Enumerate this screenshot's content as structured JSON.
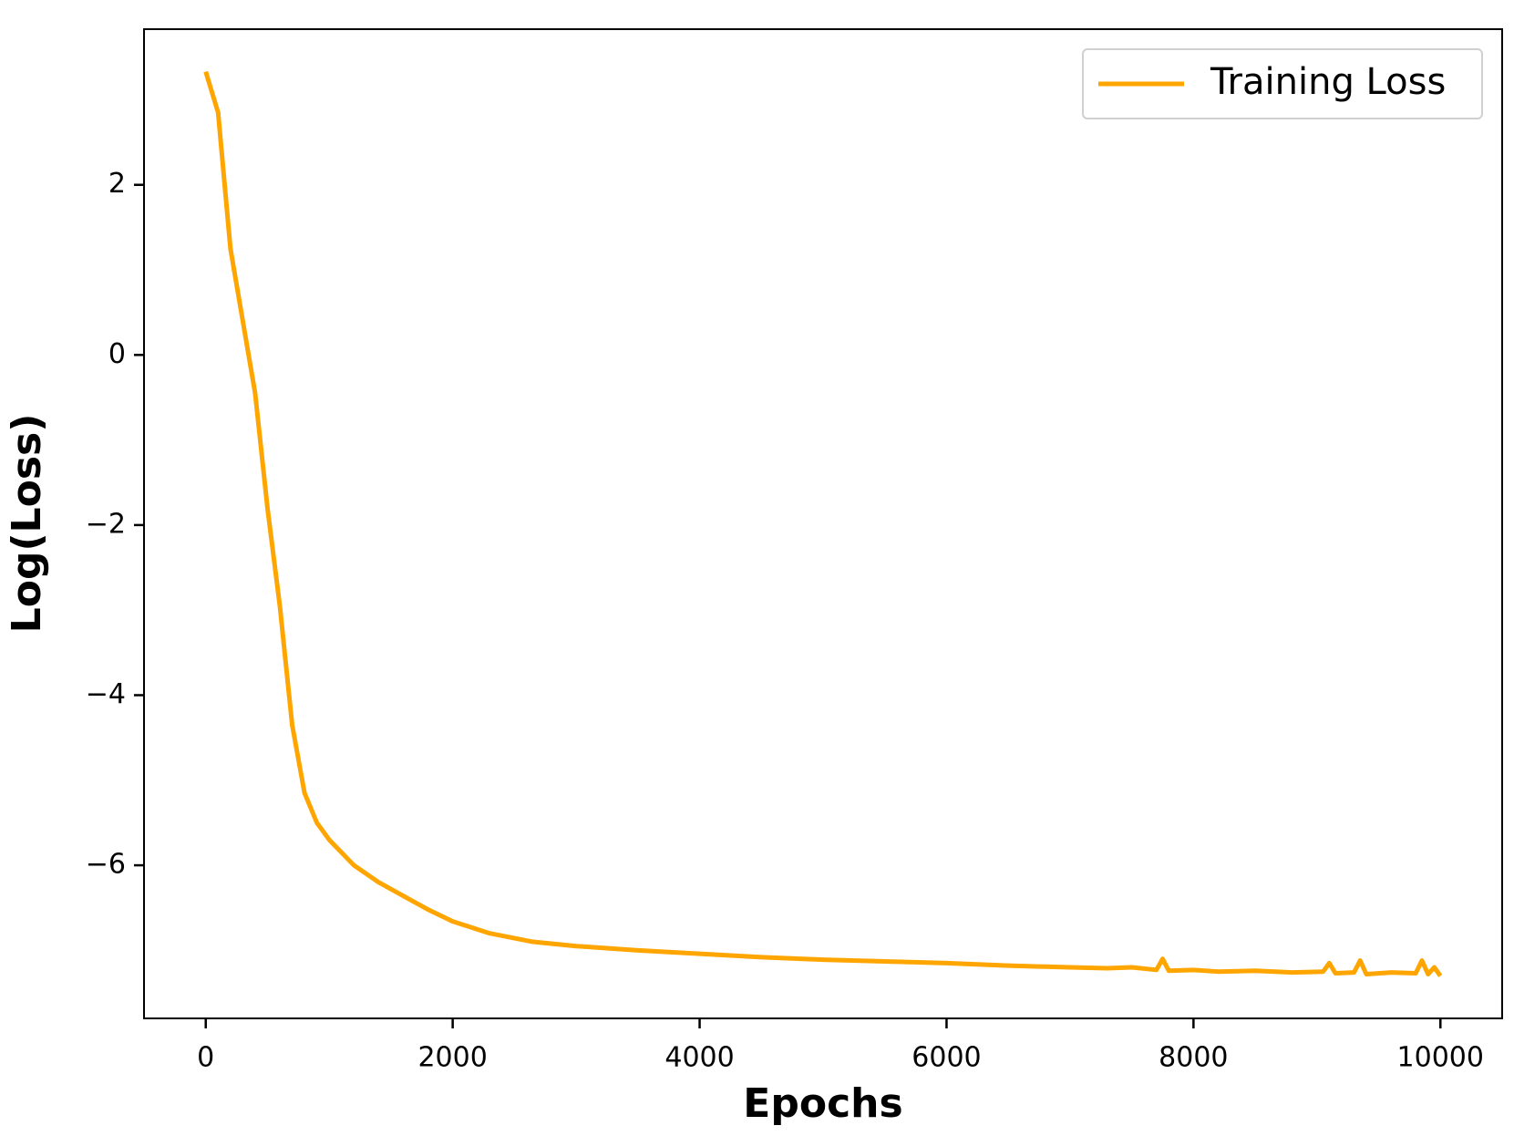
{
  "chart_data": {
    "type": "line",
    "x_label": "Epochs",
    "y_label": "Log(Loss)",
    "x": [
      0,
      100,
      200,
      300,
      400,
      500,
      600,
      700,
      800,
      900,
      1000,
      1200,
      1400,
      1600,
      1800,
      2000,
      2300,
      2650,
      3000,
      3500,
      4000,
      4500,
      5000,
      5500,
      6000,
      6500,
      7000,
      7300,
      7500,
      7700,
      7750,
      7800,
      8000,
      8200,
      8500,
      8800,
      9050,
      9100,
      9150,
      9300,
      9350,
      9400,
      9600,
      9800,
      9850,
      9900,
      9950,
      10000
    ],
    "series": [
      {
        "name": "Training Loss",
        "color": "#ffa500",
        "values": [
          3.33,
          2.85,
          1.25,
          0.4,
          -0.45,
          -1.8,
          -2.95,
          -4.35,
          -5.15,
          -5.5,
          -5.7,
          -6.0,
          -6.2,
          -6.36,
          -6.52,
          -6.66,
          -6.8,
          -6.9,
          -6.95,
          -7.0,
          -7.04,
          -7.08,
          -7.11,
          -7.13,
          -7.15,
          -7.18,
          -7.2,
          -7.21,
          -7.2,
          -7.23,
          -7.1,
          -7.24,
          -7.23,
          -7.25,
          -7.24,
          -7.26,
          -7.25,
          -7.15,
          -7.27,
          -7.26,
          -7.12,
          -7.28,
          -7.26,
          -7.27,
          -7.12,
          -7.28,
          -7.2,
          -7.3
        ]
      }
    ],
    "xlim": [
      -500,
      10500
    ],
    "ylim": [
      -7.8,
      3.83
    ],
    "xticks": [
      0,
      2000,
      4000,
      6000,
      8000,
      10000
    ],
    "yticks": [
      {
        "value": -6,
        "label": "−6"
      },
      {
        "value": -4,
        "label": "−4"
      },
      {
        "value": -2,
        "label": "−2"
      },
      0,
      2
    ],
    "legend": "upper right",
    "grid": false
  }
}
